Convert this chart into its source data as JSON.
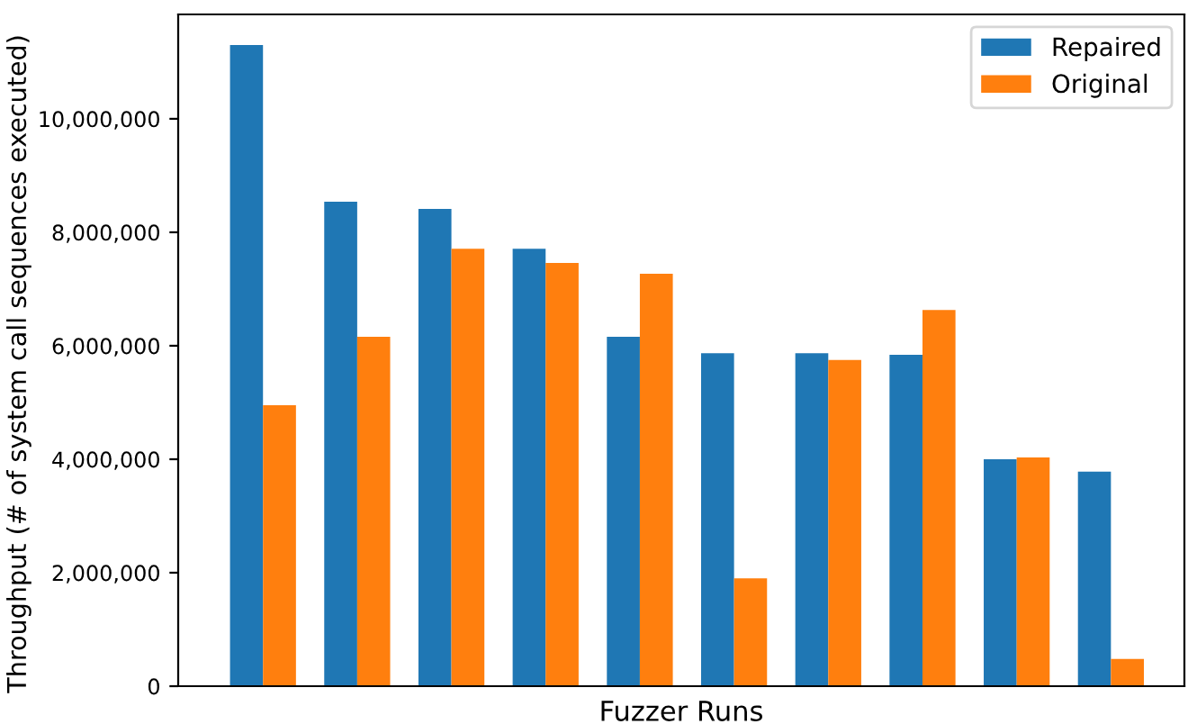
{
  "chart_data": {
    "type": "bar",
    "xlabel": "Fuzzer Runs",
    "ylabel": "Throughput (# of system call sequences executed)",
    "categories": [
      null,
      null,
      null,
      null,
      null,
      null,
      null,
      null,
      null,
      null
    ],
    "series": [
      {
        "name": "Repaired",
        "color": "#1f77b4",
        "values": [
          11300000,
          8540000,
          8410000,
          7710000,
          6160000,
          5870000,
          5870000,
          5840000,
          4000000,
          3780000
        ]
      },
      {
        "name": "Original",
        "color": "#ff7f0e",
        "values": [
          4950000,
          6160000,
          7710000,
          7460000,
          7270000,
          1900000,
          5750000,
          6630000,
          4030000,
          480000
        ]
      }
    ],
    "ylim": [
      0,
      11840000
    ],
    "yticks": [
      0,
      {
        "value": 2000000,
        "label": "2,000,000"
      },
      {
        "value": 4000000,
        "label": "4,000,000"
      },
      {
        "value": 6000000,
        "label": "6,000,000"
      },
      {
        "value": 8000000,
        "label": "8,000,000"
      },
      {
        "value": 10000000,
        "label": "10,000,000"
      }
    ],
    "legend": "top right",
    "grid": false
  }
}
